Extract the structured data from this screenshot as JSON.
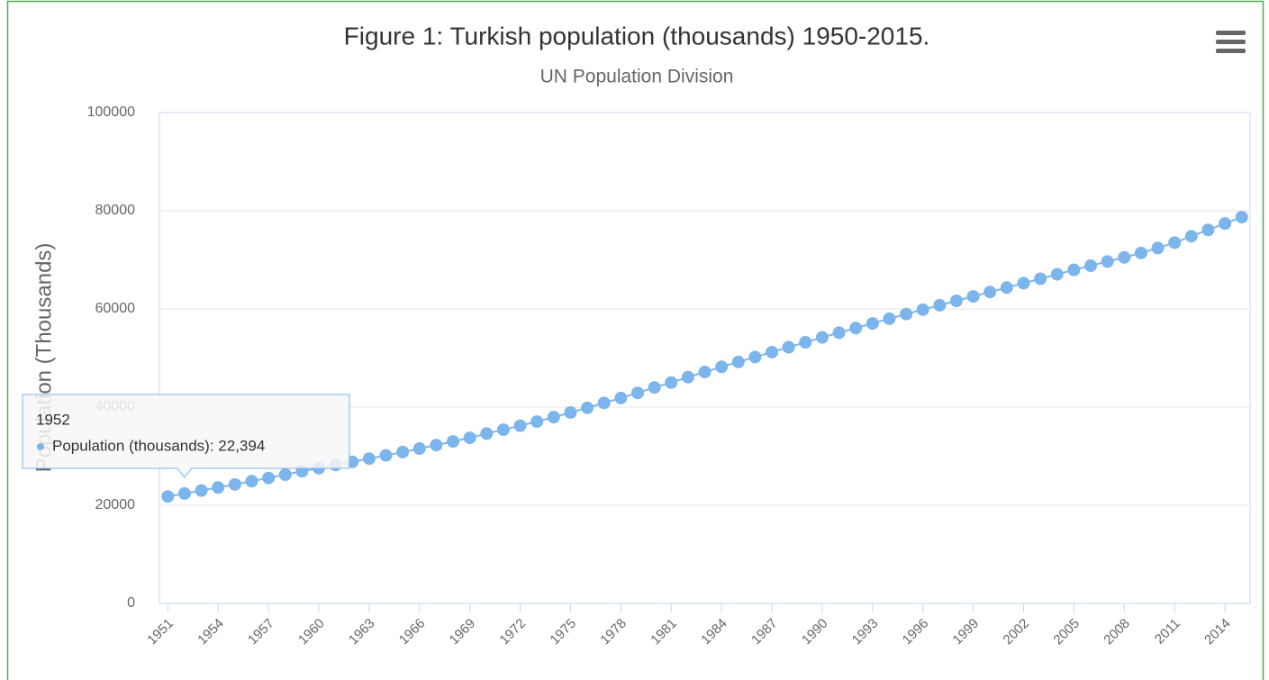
{
  "chart_data": {
    "type": "line",
    "title": "Figure 1: Turkish population (thousands) 1950-2015.",
    "subtitle": "UN Population Division",
    "y_label": "Population (Thousands)",
    "x": [
      1951,
      1952,
      1953,
      1954,
      1955,
      1956,
      1957,
      1958,
      1959,
      1960,
      1961,
      1962,
      1963,
      1964,
      1965,
      1966,
      1967,
      1968,
      1969,
      1970,
      1971,
      1972,
      1973,
      1974,
      1975,
      1976,
      1977,
      1978,
      1979,
      1980,
      1981,
      1982,
      1983,
      1984,
      1985,
      1986,
      1987,
      1988,
      1989,
      1990,
      1991,
      1992,
      1993,
      1994,
      1995,
      1996,
      1997,
      1998,
      1999,
      2000,
      2001,
      2002,
      2003,
      2004,
      2005,
      2006,
      2007,
      2008,
      2009,
      2010,
      2011,
      2012,
      2013,
      2014,
      2015
    ],
    "series": [
      {
        "name": "Population (thousands)",
        "color": "#7cb5ec",
        "values": [
          21800,
          22394,
          23000,
          23620,
          24250,
          24900,
          25560,
          26240,
          26930,
          27550,
          28200,
          28850,
          29500,
          30150,
          30850,
          31550,
          32250,
          33000,
          33750,
          34600,
          35400,
          36200,
          37050,
          37950,
          38900,
          39850,
          40850,
          41850,
          42900,
          44000,
          45000,
          46100,
          47150,
          48200,
          49200,
          50200,
          51200,
          52200,
          53200,
          54200,
          55150,
          56100,
          57050,
          58000,
          58950,
          59850,
          60750,
          61650,
          62550,
          63450,
          64350,
          65250,
          66150,
          67050,
          67950,
          68800,
          69650,
          70500,
          71400,
          72400,
          73500,
          74800,
          76100,
          77400,
          78700
        ]
      }
    ],
    "xlim": [
      1950.5,
      2015.5
    ],
    "xticks": [
      1951,
      1954,
      1957,
      1960,
      1963,
      1966,
      1969,
      1972,
      1975,
      1978,
      1981,
      1984,
      1987,
      1990,
      1993,
      1996,
      1999,
      2002,
      2005,
      2008,
      2011,
      2014
    ],
    "ylim": [
      0,
      100000
    ],
    "yticks": [
      0,
      20000,
      40000,
      60000,
      80000,
      100000
    ],
    "grid": true,
    "tooltip": {
      "title": "1952",
      "text": "Population (thousands): 22,394"
    }
  }
}
